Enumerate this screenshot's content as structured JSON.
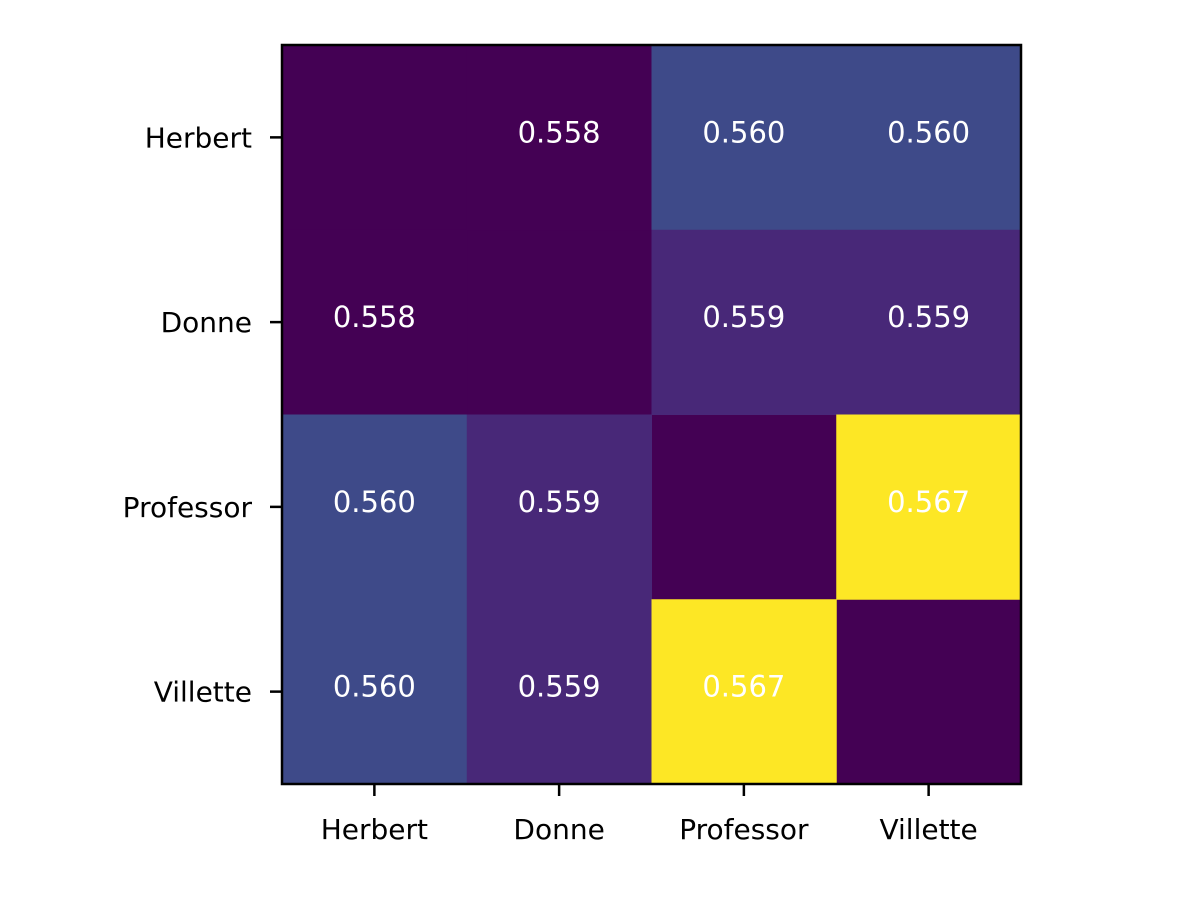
{
  "chart_data": {
    "type": "heatmap",
    "x_categories": [
      "Herbert",
      "Donne",
      "Professor",
      "Villette"
    ],
    "y_categories": [
      "Herbert",
      "Donne",
      "Professor",
      "Villette"
    ],
    "values": [
      [
        null,
        0.558,
        0.56,
        0.56
      ],
      [
        0.558,
        null,
        0.559,
        0.559
      ],
      [
        0.56,
        0.559,
        null,
        0.567
      ],
      [
        0.56,
        0.559,
        0.567,
        null
      ]
    ],
    "value_labels": [
      [
        null,
        "0.558",
        "0.560",
        "0.560"
      ],
      [
        "0.558",
        null,
        "0.559",
        "0.559"
      ],
      [
        "0.560",
        "0.559",
        null,
        "0.567"
      ],
      [
        "0.560",
        "0.559",
        "0.567",
        null
      ]
    ],
    "colormap": "viridis"
  }
}
